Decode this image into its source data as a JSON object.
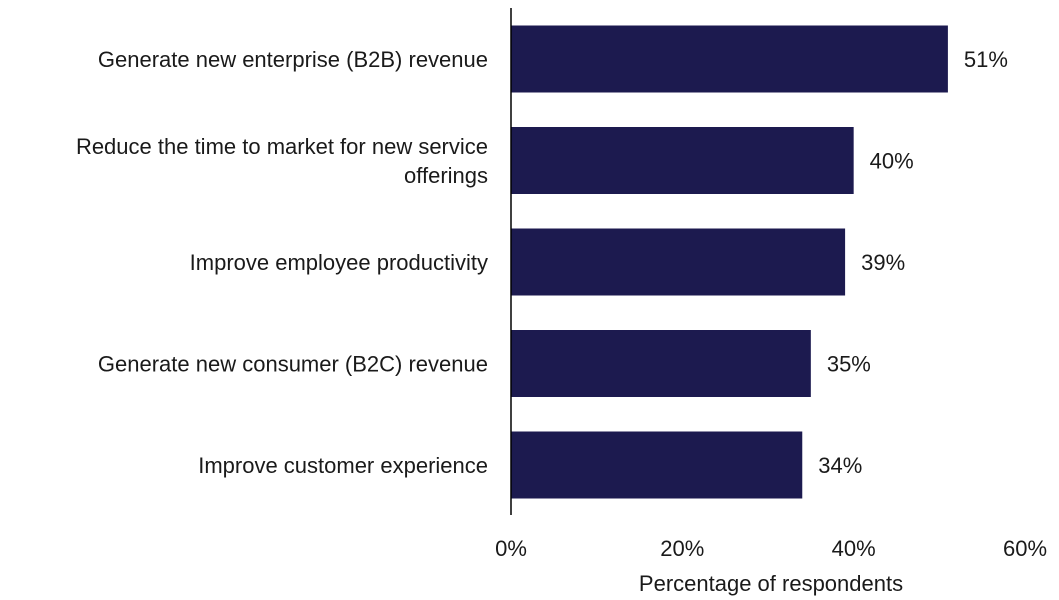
{
  "chart_data": {
    "type": "bar",
    "orientation": "horizontal",
    "categories": [
      [
        "Generate new enterprise (B2B) revenue"
      ],
      [
        "Reduce the time to market for new service",
        "offerings"
      ],
      [
        "Improve employee productivity"
      ],
      [
        "Generate new consumer (B2C) revenue"
      ],
      [
        "Improve customer experience"
      ]
    ],
    "values": [
      51,
      40,
      39,
      35,
      34
    ],
    "value_labels": [
      "51%",
      "40%",
      "39%",
      "35%",
      "34%"
    ],
    "xlabel": "Percentage of respondents",
    "ylabel": "",
    "xlim": [
      0,
      60
    ],
    "xticks": [
      0,
      20,
      40,
      60
    ],
    "xtick_labels": [
      "0%",
      "20%",
      "40%",
      "60%"
    ],
    "grid": false,
    "bar_color": "#1c1a4f",
    "text_color": "#1a1a1a"
  }
}
